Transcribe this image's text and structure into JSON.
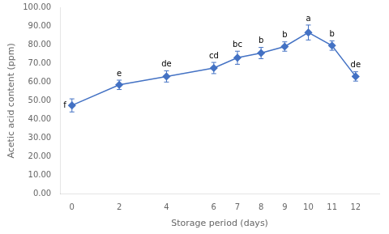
{
  "chart_data": {
    "type": "line",
    "xlabel": "Storage period (days)",
    "ylabel": "Acetic acid content (ppm)",
    "x": [
      0,
      2,
      4,
      6,
      7,
      8,
      9,
      10,
      11,
      12
    ],
    "values": [
      47.5,
      58.5,
      63.0,
      67.5,
      73.0,
      75.5,
      79.0,
      86.5,
      79.5,
      63.0
    ],
    "yerr": [
      3.5,
      2.5,
      3.0,
      3.0,
      3.5,
      3.0,
      2.5,
      4.0,
      2.5,
      2.5
    ],
    "point_labels": [
      "f",
      "e",
      "de",
      "cd",
      "bc",
      "b",
      "b",
      "a",
      "b",
      "de"
    ],
    "color": "#4472C4",
    "marker": "diamond",
    "line_style": "solid",
    "xlim": [
      -0.5,
      13.0
    ],
    "xticks": [
      0,
      2,
      4,
      6,
      7,
      8,
      9,
      10,
      11,
      12
    ],
    "ylim": [
      0,
      100
    ],
    "yticks": [
      {
        "value": 0,
        "label": "0.00"
      },
      {
        "value": 10,
        "label": "10.00"
      },
      {
        "value": 20,
        "label": "20.00"
      },
      {
        "value": 30,
        "label": "30.00"
      },
      {
        "value": 40,
        "label": "40.00"
      },
      {
        "value": 50,
        "label": "50.00"
      },
      {
        "value": 60,
        "label": "60.00"
      },
      {
        "value": 70,
        "label": "70.00"
      },
      {
        "value": 80,
        "label": "80.00"
      },
      {
        "value": 90,
        "label": "90.00"
      },
      {
        "value": 100,
        "label": "100.00"
      }
    ],
    "grid": false
  }
}
